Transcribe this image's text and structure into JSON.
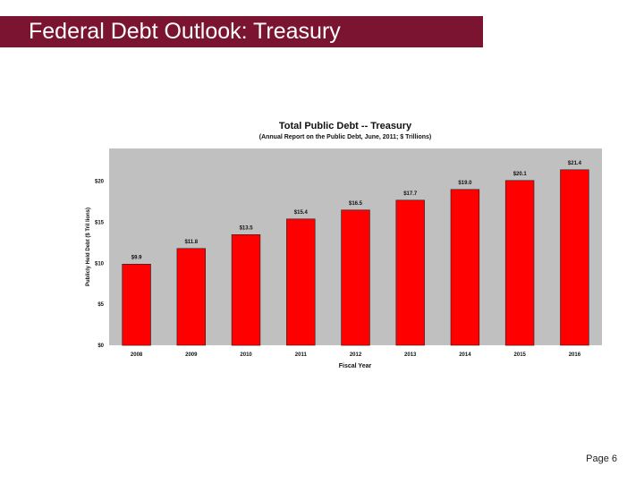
{
  "slide": {
    "title": "Federal Debt Outlook: Treasury",
    "page_label": "Page 6"
  },
  "colors": {
    "banner": "#7a1430",
    "bar": "#ff0000",
    "plot_background": "#c0c0c0"
  },
  "chart_data": {
    "type": "bar",
    "title": "Total Public Debt -- Treasury",
    "subtitle": "(Annual Report on the Public Debt, June, 2011; $ Trillions)",
    "xlabel": "Fiscal Year",
    "ylabel": "Publicly Held Debt ($ Tril lions)",
    "categories": [
      "2008",
      "2009",
      "2010",
      "2011",
      "2012",
      "2013",
      "2014",
      "2015",
      "2016"
    ],
    "values": [
      9.9,
      11.8,
      13.5,
      15.4,
      16.5,
      17.7,
      19.0,
      20.1,
      21.4
    ],
    "value_labels": [
      "$9.9",
      "$11.8",
      "$13.5",
      "$15.4",
      "$16.5",
      "$17.7",
      "$19.0",
      "$20.1",
      "$21.4"
    ],
    "y_ticks": [
      0,
      5,
      10,
      15,
      20
    ],
    "y_tick_labels": [
      "$0",
      "$5",
      "$10",
      "$15",
      "$20"
    ],
    "ylim": [
      0,
      24
    ],
    "grid": false,
    "legend": "none"
  }
}
